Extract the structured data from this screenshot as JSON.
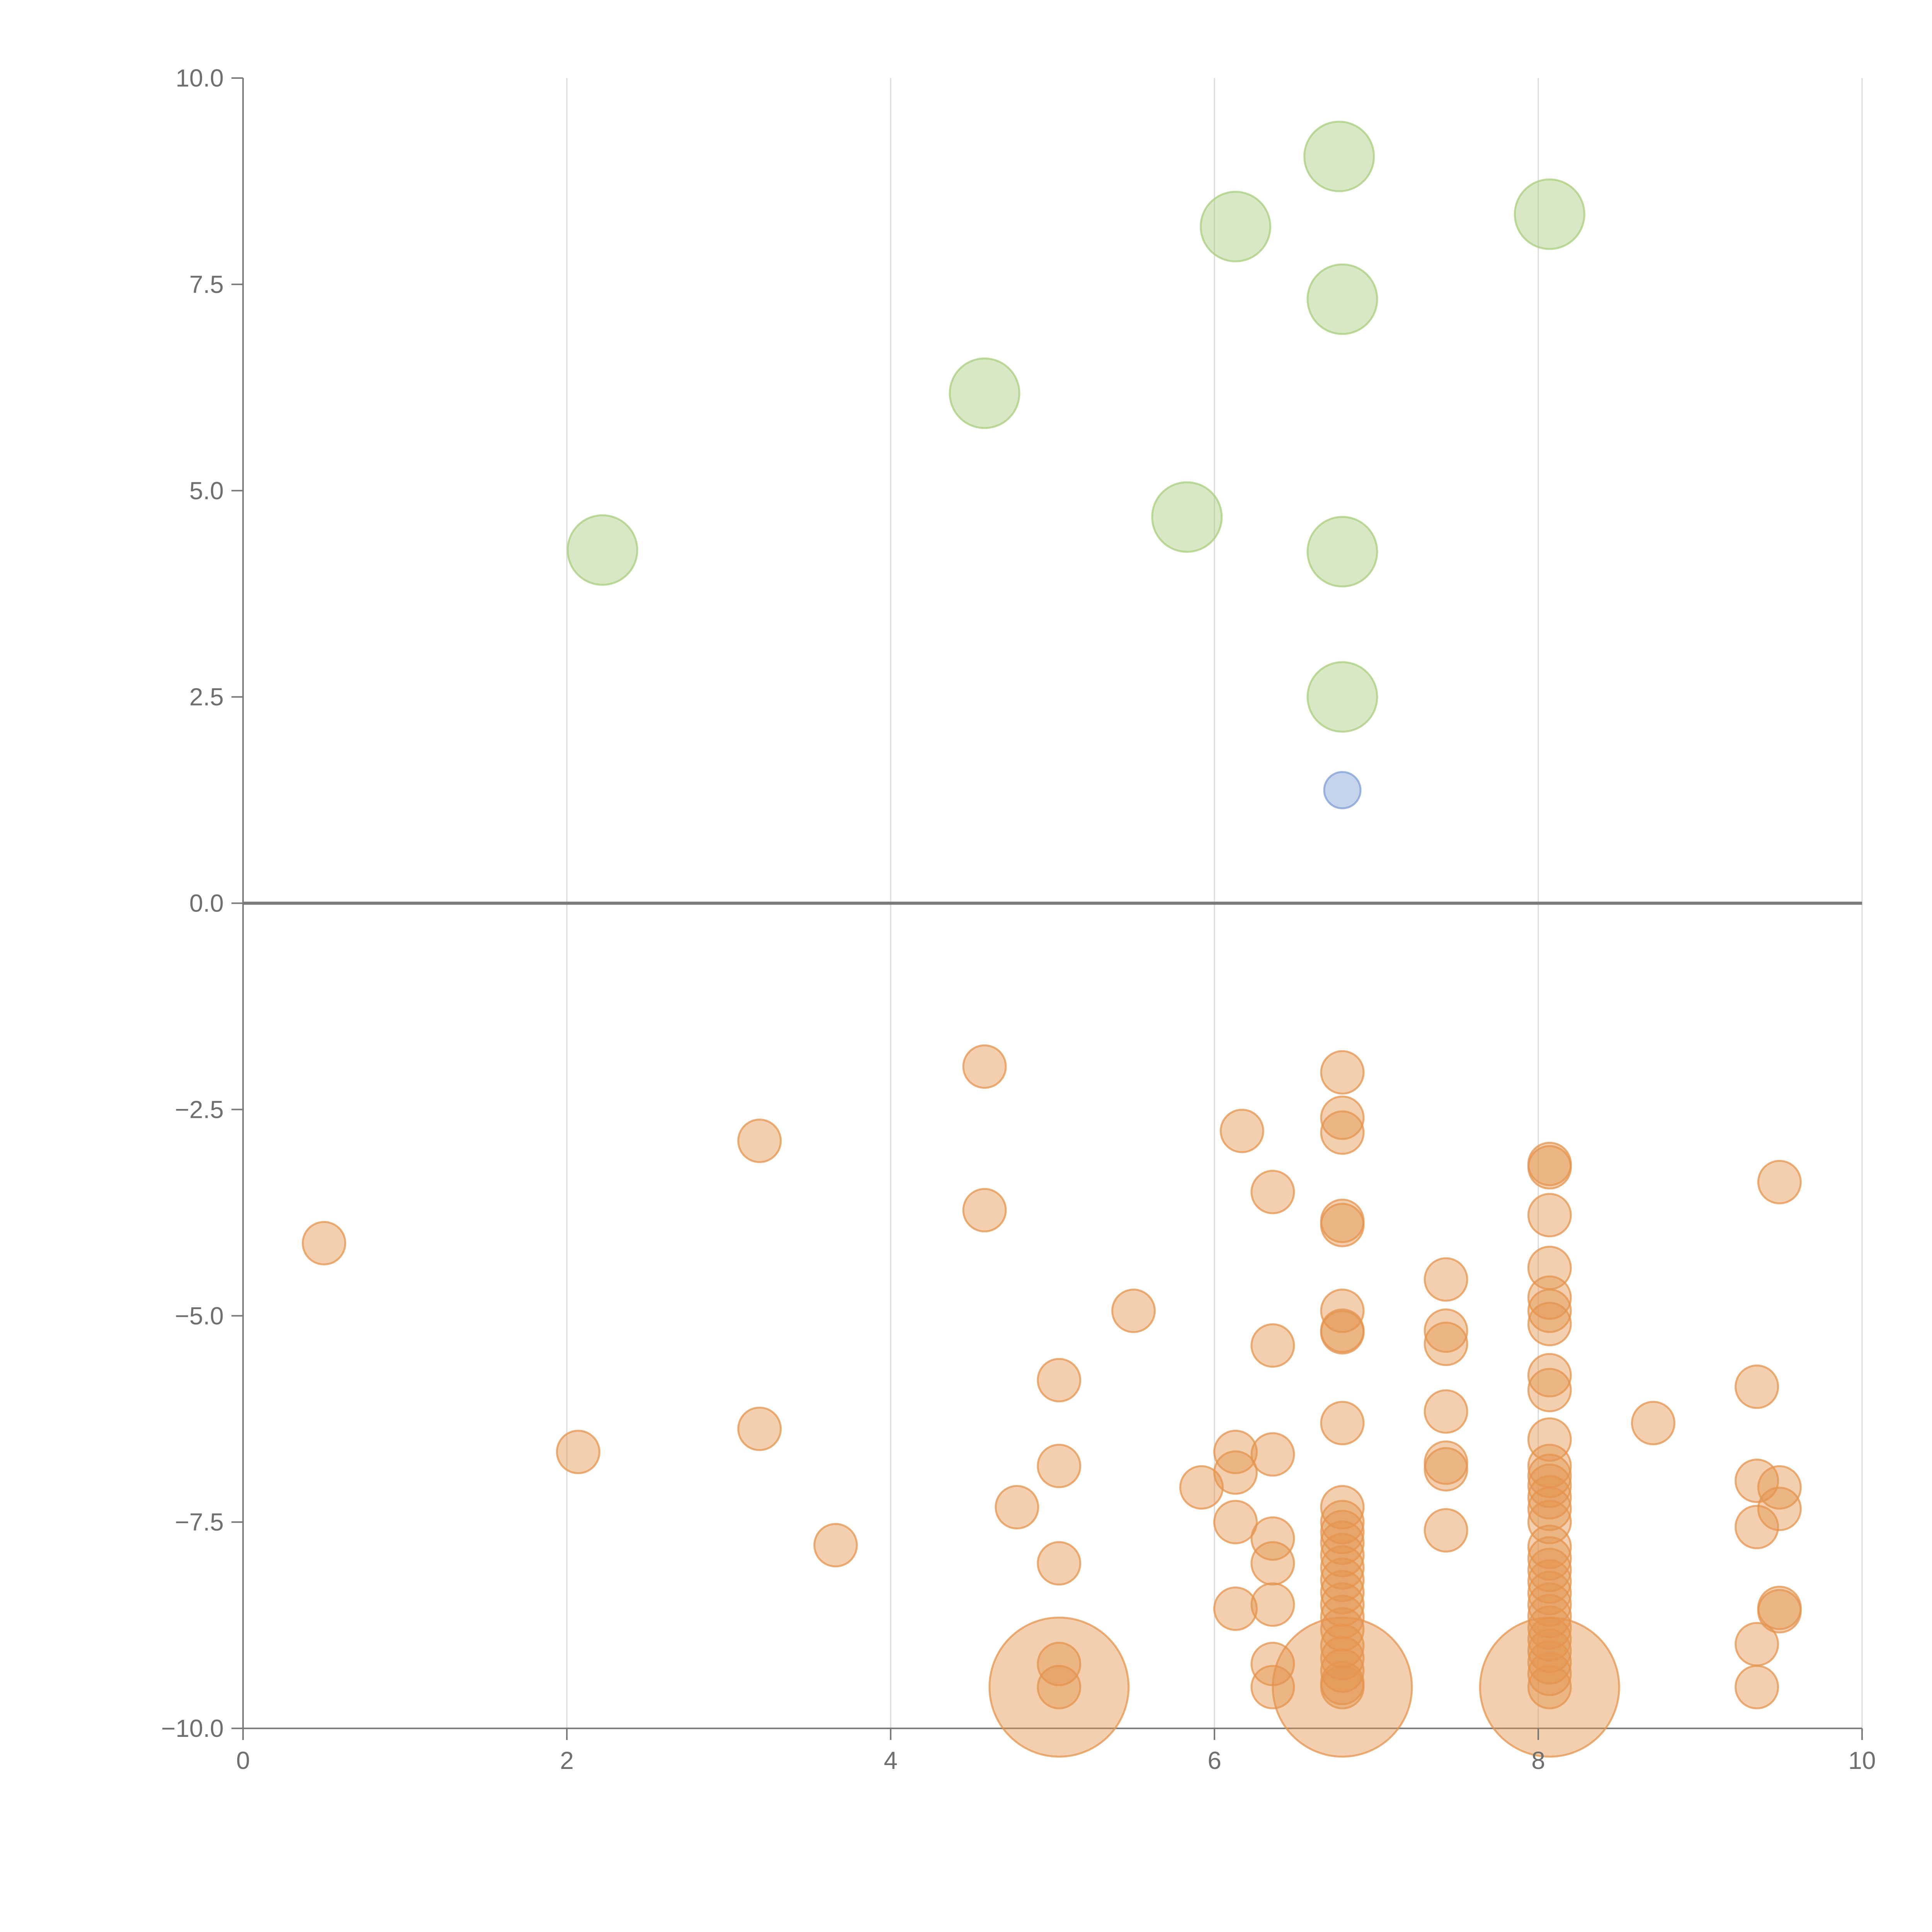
{
  "chart_data": {
    "type": "scatter",
    "title": "",
    "xlabel": "",
    "ylabel": "",
    "xlim": [
      0,
      10
    ],
    "ylim": [
      -10,
      10
    ],
    "x_ticks": [
      0,
      2,
      4,
      6,
      8,
      10
    ],
    "x_tick_labels": [
      "0",
      "2",
      "4",
      "6",
      "8",
      "10"
    ],
    "y_ticks": [
      10,
      7.5,
      5,
      2.5,
      0,
      -2.5,
      -5,
      -7.5,
      -10
    ],
    "y_tick_labels": [
      "10.0",
      "7.5",
      "5.0",
      "2.5",
      "0.0",
      "−2.5",
      "−5.0",
      "−7.5",
      "−10.0"
    ],
    "grid": {
      "vertical": true,
      "horizontal": false
    },
    "zero_line": true,
    "legend": "none",
    "series": [
      {
        "color": "#a9cd7e",
        "relative_size": "large",
        "points": [
          [
            6.77,
            9.05
          ],
          [
            6.13,
            8.2
          ],
          [
            8.07,
            8.35
          ],
          [
            6.79,
            7.32
          ],
          [
            4.58,
            6.18
          ],
          [
            5.83,
            4.68
          ],
          [
            2.22,
            4.28
          ],
          [
            6.79,
            4.26
          ],
          [
            6.79,
            2.5
          ]
        ]
      },
      {
        "color": "#7f9fd4",
        "relative_size": "small",
        "points": [
          [
            6.79,
            1.37
          ]
        ]
      },
      {
        "color": "#e4944f",
        "relative_size": "medium",
        "points": [
          [
            0.5,
            -4.12
          ],
          [
            2.07,
            -6.65
          ],
          [
            3.19,
            -2.88
          ],
          [
            3.19,
            -6.37
          ],
          [
            3.66,
            -7.78
          ],
          [
            4.58,
            -1.98
          ],
          [
            4.58,
            -3.72
          ],
          [
            4.78,
            -7.32
          ],
          [
            5.04,
            -5.78
          ],
          [
            5.04,
            -6.82
          ],
          [
            5.04,
            -8.0
          ],
          [
            5.04,
            -9.22
          ],
          [
            5.04,
            -9.5
          ],
          [
            5.5,
            -4.94
          ],
          [
            5.92,
            -7.08
          ],
          [
            6.13,
            -6.65
          ],
          [
            6.13,
            -6.9
          ],
          [
            6.13,
            -7.5
          ],
          [
            6.13,
            -8.55
          ],
          [
            6.17,
            -2.76
          ],
          [
            6.36,
            -3.5
          ],
          [
            6.36,
            -5.36
          ],
          [
            6.36,
            -6.68
          ],
          [
            6.36,
            -7.7
          ],
          [
            6.36,
            -8.0
          ],
          [
            6.36,
            -8.5
          ],
          [
            6.36,
            -9.22
          ],
          [
            6.36,
            -9.5
          ],
          [
            6.79,
            -2.05
          ],
          [
            6.79,
            -2.6
          ],
          [
            6.79,
            -2.78
          ],
          [
            6.79,
            -3.85
          ],
          [
            6.79,
            -3.9
          ],
          [
            6.79,
            -4.94
          ],
          [
            6.79,
            -5.18
          ],
          [
            6.79,
            -5.2
          ],
          [
            6.79,
            -6.3
          ],
          [
            6.79,
            -7.32
          ],
          [
            6.79,
            -7.5
          ],
          [
            6.79,
            -7.62
          ],
          [
            6.79,
            -7.75
          ],
          [
            6.79,
            -7.9
          ],
          [
            6.79,
            -8.05
          ],
          [
            6.79,
            -8.2
          ],
          [
            6.79,
            -8.35
          ],
          [
            6.79,
            -8.5
          ],
          [
            6.79,
            -8.65
          ],
          [
            6.79,
            -8.8
          ],
          [
            6.79,
            -9.0
          ],
          [
            6.79,
            -9.15
          ],
          [
            6.79,
            -9.3
          ],
          [
            6.79,
            -9.45
          ],
          [
            6.79,
            -9.5
          ],
          [
            7.43,
            -4.56
          ],
          [
            7.43,
            -5.18
          ],
          [
            7.43,
            -5.34
          ],
          [
            7.43,
            -6.16
          ],
          [
            7.43,
            -6.78
          ],
          [
            7.43,
            -6.86
          ],
          [
            7.43,
            -7.6
          ],
          [
            8.07,
            -3.16
          ],
          [
            8.07,
            -3.2
          ],
          [
            8.07,
            -3.78
          ],
          [
            8.07,
            -4.42
          ],
          [
            8.07,
            -4.78
          ],
          [
            8.07,
            -4.94
          ],
          [
            8.07,
            -5.1
          ],
          [
            8.07,
            -5.72
          ],
          [
            8.07,
            -5.9
          ],
          [
            8.07,
            -6.5
          ],
          [
            8.07,
            -6.82
          ],
          [
            8.07,
            -6.94
          ],
          [
            8.07,
            -7.06
          ],
          [
            8.07,
            -7.2
          ],
          [
            8.07,
            -7.34
          ],
          [
            8.07,
            -7.5
          ],
          [
            8.07,
            -7.8
          ],
          [
            8.07,
            -7.94
          ],
          [
            8.07,
            -8.08
          ],
          [
            8.07,
            -8.22
          ],
          [
            8.07,
            -8.36
          ],
          [
            8.07,
            -8.5
          ],
          [
            8.07,
            -8.64
          ],
          [
            8.07,
            -8.78
          ],
          [
            8.07,
            -8.92
          ],
          [
            8.07,
            -9.06
          ],
          [
            8.07,
            -9.2
          ],
          [
            8.07,
            -9.34
          ],
          [
            8.07,
            -9.5
          ],
          [
            8.71,
            -6.3
          ],
          [
            9.35,
            -5.86
          ],
          [
            9.35,
            -7.0
          ],
          [
            9.35,
            -7.56
          ],
          [
            9.35,
            -8.98
          ],
          [
            9.35,
            -9.5
          ],
          [
            9.49,
            -3.38
          ],
          [
            9.49,
            -7.08
          ],
          [
            9.49,
            -7.34
          ],
          [
            9.49,
            -8.54
          ],
          [
            9.49,
            -8.58
          ]
        ]
      },
      {
        "color": "#e4944f",
        "relative_size": "extra-large",
        "points": [
          [
            5.04,
            -9.5
          ],
          [
            6.79,
            -9.5
          ],
          [
            8.07,
            -9.5
          ]
        ]
      }
    ]
  }
}
